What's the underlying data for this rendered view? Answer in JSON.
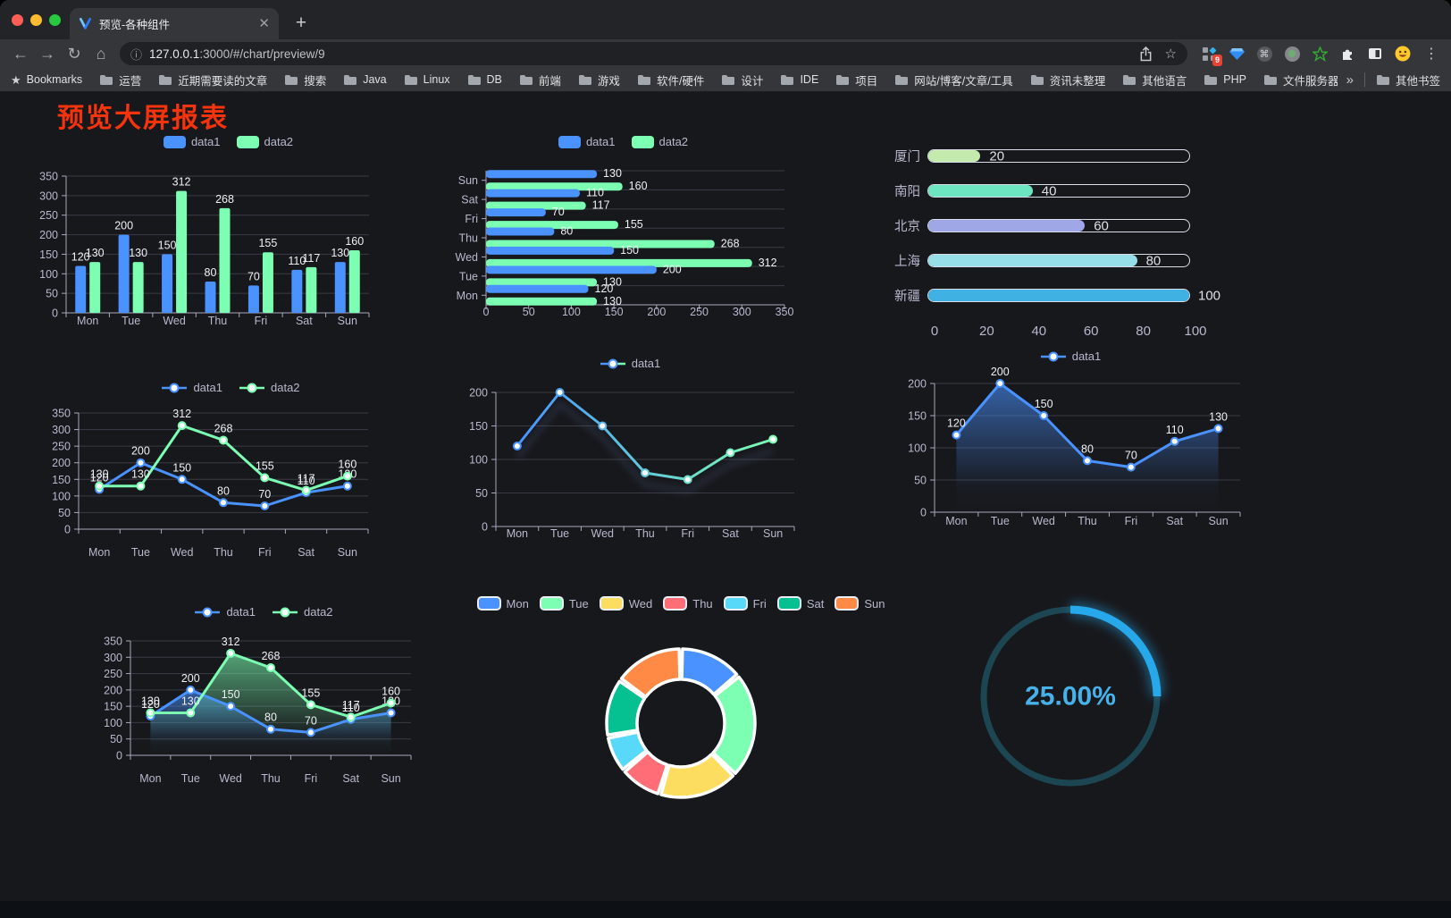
{
  "browser": {
    "tab_title": "预览-各种组件",
    "url_host": "127.0.0.1",
    "url_rest": ":3000/#/chart/preview/9",
    "badge": "9",
    "bookmarks_label": "Bookmarks",
    "bookmarks": [
      "运营",
      "近期需要读的文章",
      "搜索",
      "Java",
      "Linux",
      "DB",
      "前端",
      "游戏",
      "软件/硬件",
      "设计",
      "IDE",
      "项目",
      "网站/博客/文章/工具",
      "资讯未整理",
      "其他语言",
      "PHP",
      "文件服务器"
    ],
    "overflow_glyph": "»",
    "other_bookmarks_label": "其他书签"
  },
  "page": {
    "title": "预览大屏报表",
    "title_color": "#f5330d",
    "background": "#17181c"
  },
  "chart_data": [
    {
      "id": "c1",
      "type": "bar",
      "categories": [
        "Mon",
        "Tue",
        "Wed",
        "Thu",
        "Fri",
        "Sat",
        "Sun"
      ],
      "series": [
        {
          "name": "data1",
          "color": "#4992ff",
          "values": [
            120,
            200,
            150,
            80,
            70,
            110,
            130
          ]
        },
        {
          "name": "data2",
          "color": "#7cffb2",
          "values": [
            130,
            130,
            312,
            268,
            155,
            117,
            160
          ]
        }
      ],
      "ylim": [
        0,
        350
      ],
      "ytick_step": 50,
      "labels": true,
      "grid": true,
      "legend_position": "top"
    },
    {
      "id": "c2",
      "type": "hbar",
      "categories": [
        "Mon",
        "Tue",
        "Wed",
        "Thu",
        "Fri",
        "Sat",
        "Sun"
      ],
      "display_order_top_to_bottom": [
        "Sun",
        "Sat",
        "Fri",
        "Thu",
        "Wed",
        "Tue",
        "Mon"
      ],
      "series": [
        {
          "name": "data1",
          "color": "#4992ff",
          "values": [
            120,
            200,
            150,
            80,
            70,
            110,
            130
          ]
        },
        {
          "name": "data2",
          "color": "#7cffb2",
          "values": [
            130,
            130,
            312,
            268,
            155,
            117,
            160
          ]
        }
      ],
      "xlim": [
        0,
        350
      ],
      "xtick_step": 50,
      "labels": true,
      "legend_position": "top"
    },
    {
      "id": "c3",
      "type": "progress",
      "max": 100,
      "ticks": [
        0,
        20,
        40,
        60,
        80,
        100
      ],
      "items": [
        {
          "label": "厦门",
          "value": 20,
          "color": "#c4ebad"
        },
        {
          "label": "南阳",
          "value": 40,
          "color": "#6be6c1"
        },
        {
          "label": "北京",
          "value": 60,
          "color": "#a0a7e6"
        },
        {
          "label": "上海",
          "value": 80,
          "color": "#96dee8"
        },
        {
          "label": "新疆",
          "value": 100,
          "color": "#3fb1e3"
        }
      ]
    },
    {
      "id": "c4",
      "type": "line",
      "categories": [
        "Mon",
        "Tue",
        "Wed",
        "Thu",
        "Fri",
        "Sat",
        "Sun"
      ],
      "series": [
        {
          "name": "data1",
          "color": "#4992ff",
          "values": [
            120,
            200,
            150,
            80,
            70,
            110,
            130
          ]
        },
        {
          "name": "data2",
          "color": "#7cffb2",
          "values": [
            130,
            130,
            312,
            268,
            155,
            117,
            160
          ]
        }
      ],
      "ylim": [
        0,
        350
      ],
      "ytick_step": 50,
      "labels": true,
      "markers": true,
      "legend_position": "top"
    },
    {
      "id": "c5",
      "type": "line",
      "categories": [
        "Mon",
        "Tue",
        "Wed",
        "Thu",
        "Fri",
        "Sat",
        "Sun"
      ],
      "series": [
        {
          "name": "data1",
          "color_gradient": [
            "#4992ff",
            "#7cffb2"
          ],
          "values": [
            120,
            200,
            150,
            80,
            70,
            110,
            130
          ]
        }
      ],
      "ylim": [
        0,
        200
      ],
      "ytick_step": 50,
      "labels": false,
      "markers": true,
      "shadow": true,
      "legend_position": "top"
    },
    {
      "id": "c6",
      "type": "area",
      "categories": [
        "Mon",
        "Tue",
        "Wed",
        "Thu",
        "Fri",
        "Sat",
        "Sun"
      ],
      "series": [
        {
          "name": "data1",
          "color": "#4992ff",
          "values": [
            120,
            200,
            150,
            80,
            70,
            110,
            130
          ]
        }
      ],
      "ylim": [
        0,
        200
      ],
      "ytick_step": 50,
      "labels": true,
      "markers": true,
      "legend_position": "top"
    },
    {
      "id": "c7",
      "type": "area",
      "categories": [
        "Mon",
        "Tue",
        "Wed",
        "Thu",
        "Fri",
        "Sat",
        "Sun"
      ],
      "series": [
        {
          "name": "data1",
          "color": "#4992ff",
          "values": [
            120,
            200,
            150,
            80,
            70,
            110,
            130
          ]
        },
        {
          "name": "data2",
          "color": "#7cffb2",
          "values": [
            130,
            130,
            312,
            268,
            155,
            117,
            160
          ]
        }
      ],
      "ylim": [
        0,
        350
      ],
      "ytick_step": 50,
      "labels": true,
      "markers": true,
      "legend_position": "top"
    },
    {
      "id": "c8",
      "type": "pie",
      "donut": true,
      "categories": [
        "Mon",
        "Tue",
        "Wed",
        "Thu",
        "Fri",
        "Sat",
        "Sun"
      ],
      "values": [
        120,
        200,
        150,
        80,
        70,
        110,
        130
      ],
      "colors": [
        "#4992ff",
        "#7cffb2",
        "#fddd60",
        "#ff6e76",
        "#58d9f9",
        "#05c091",
        "#ff8a45"
      ],
      "border_color": "#ffffff",
      "legend_position": "top"
    },
    {
      "id": "c9",
      "type": "gauge",
      "value_text": "25.00%",
      "percent": 25,
      "color": "#27a8ea",
      "track_color": "#1d4653",
      "text_color": "#46b2e9"
    }
  ]
}
